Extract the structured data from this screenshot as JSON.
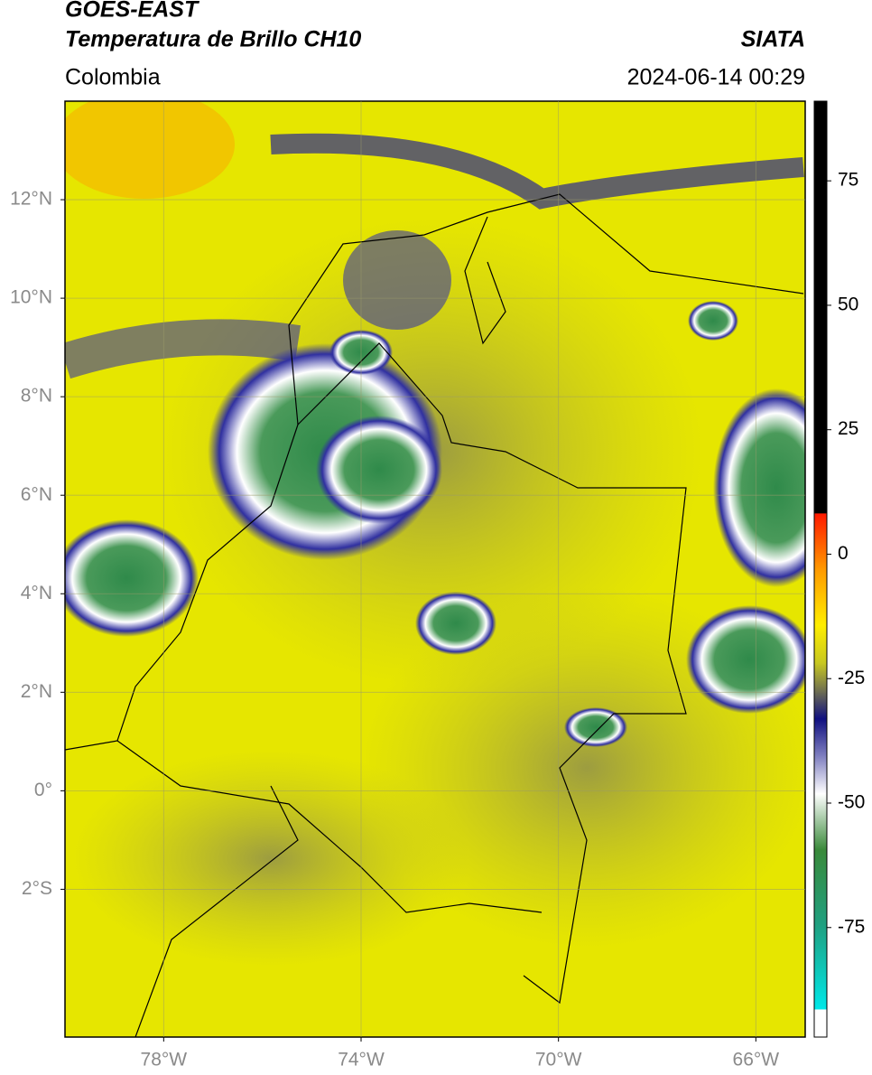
{
  "header": {
    "title_line1": "GOES-EAST",
    "title_line2": "Temperatura de Brillo CH10",
    "source": "SIATA",
    "region": "Colombia",
    "datetime": "2024-06-14 00:29"
  },
  "map": {
    "lon_range": [
      -80,
      -65
    ],
    "lat_range": [
      -5,
      14
    ],
    "lon_ticks": [
      {
        "value": -78,
        "label": "78°W"
      },
      {
        "value": -74,
        "label": "74°W"
      },
      {
        "value": -70,
        "label": "70°W"
      },
      {
        "value": -66,
        "label": "66°W"
      }
    ],
    "lat_ticks": [
      {
        "value": 12,
        "label": "12°N"
      },
      {
        "value": 10,
        "label": "10°N"
      },
      {
        "value": 8,
        "label": "8°N"
      },
      {
        "value": 6,
        "label": "6°N"
      },
      {
        "value": 4,
        "label": "4°N"
      },
      {
        "value": 2,
        "label": "2°N"
      },
      {
        "value": 0,
        "label": "0°"
      },
      {
        "value": -2,
        "label": "2°S"
      }
    ]
  },
  "colorbar": {
    "range": [
      -97,
      91
    ],
    "ticks": [
      75,
      50,
      25,
      0,
      -25,
      -50,
      -75
    ]
  }
}
